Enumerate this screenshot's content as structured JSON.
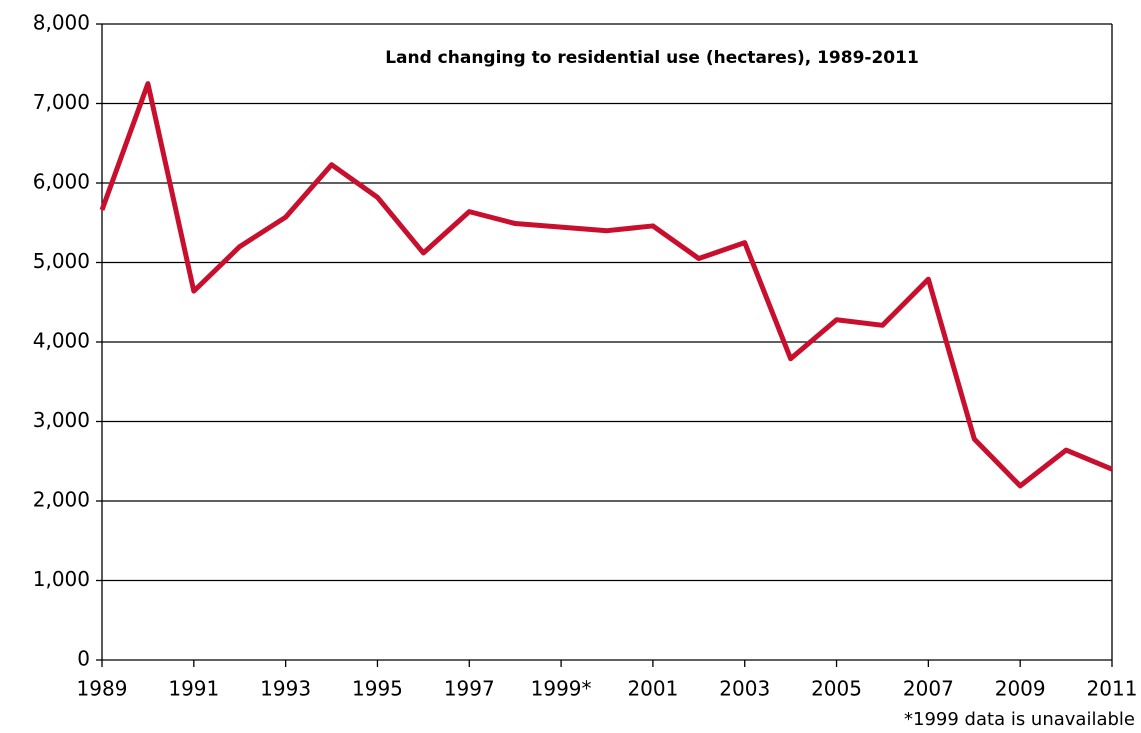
{
  "chart_data": {
    "type": "line",
    "title": "Land changing to residential use (hectares), 1989-2011",
    "note": "*1999 data is unavailable",
    "x": [
      1989,
      1990,
      1991,
      1992,
      1993,
      1994,
      1995,
      1996,
      1997,
      1998,
      2000,
      2001,
      2002,
      2003,
      2004,
      2005,
      2006,
      2007,
      2008,
      2009,
      2010,
      2011
    ],
    "values": [
      5660,
      7250,
      4640,
      5200,
      5570,
      6230,
      5820,
      5120,
      5640,
      5490,
      5400,
      5460,
      5050,
      5250,
      3790,
      4280,
      4210,
      4790,
      2780,
      2190,
      2640,
      2400
    ],
    "color": "#c8102e",
    "xlim": [
      1989,
      2011
    ],
    "xticks": [
      1989,
      1991,
      1993,
      1995,
      1997,
      {
        "value": 1999,
        "label": "1999*"
      },
      2001,
      2003,
      2005,
      2007,
      2009,
      2011
    ],
    "ylim": [
      0,
      8000
    ],
    "yticks": [
      0,
      {
        "value": 1000,
        "label": "1,000"
      },
      {
        "value": 2000,
        "label": "2,000"
      },
      {
        "value": 3000,
        "label": "3,000"
      },
      {
        "value": 4000,
        "label": "4,000"
      },
      {
        "value": 5000,
        "label": "5,000"
      },
      {
        "value": 6000,
        "label": "6,000"
      },
      {
        "value": 7000,
        "label": "7,000"
      },
      {
        "value": 8000,
        "label": "8,000"
      }
    ],
    "grid": true
  }
}
